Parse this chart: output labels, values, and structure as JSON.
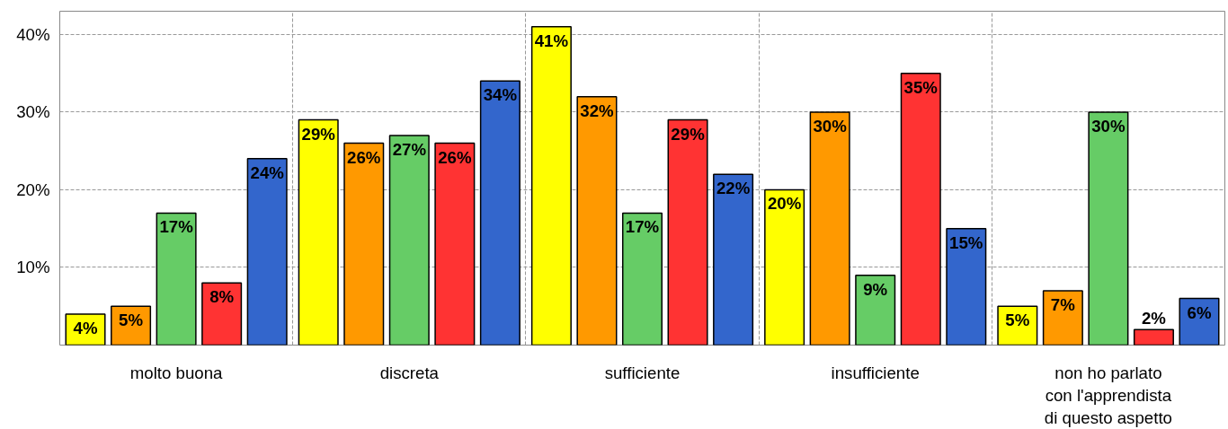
{
  "chart_data": {
    "type": "bar",
    "categories": [
      "molto buona",
      "discreta",
      "sufficiente",
      "insufficiente",
      "non ho parlato\ncon l'apprendista\ndi questo aspetto"
    ],
    "series": [
      {
        "color": "#ffff00",
        "values": [
          4,
          29,
          41,
          20,
          5
        ],
        "value_labels": [
          "4%",
          "29%",
          "41%",
          "20%",
          "5%"
        ]
      },
      {
        "color": "#ff9900",
        "values": [
          5,
          26,
          32,
          30,
          7
        ],
        "value_labels": [
          "5%",
          "26%",
          "32%",
          "30%",
          "7%"
        ]
      },
      {
        "color": "#66cc66",
        "values": [
          17,
          27,
          17,
          9,
          30
        ],
        "value_labels": [
          "17%",
          "27%",
          "17%",
          "9%",
          "30%"
        ]
      },
      {
        "color": "#ff3333",
        "values": [
          8,
          26,
          29,
          35,
          2
        ],
        "value_labels": [
          "8%",
          "26%",
          "29%",
          "35%",
          "2%"
        ]
      },
      {
        "color": "#3366cc",
        "values": [
          24,
          34,
          22,
          15,
          6
        ],
        "value_labels": [
          "24%",
          "34%",
          "22%",
          "15%",
          "6%"
        ]
      }
    ],
    "ylim": [
      0,
      43
    ],
    "yticks": [
      {
        "value": 10,
        "label": "10%"
      },
      {
        "value": 20,
        "label": "20%"
      },
      {
        "value": 30,
        "label": "30%"
      },
      {
        "value": 40,
        "label": "40%"
      }
    ],
    "grid": true
  }
}
